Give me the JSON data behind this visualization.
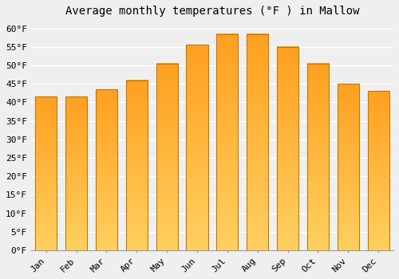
{
  "title": "Average monthly temperatures (°F ) in Mallow",
  "months": [
    "Jan",
    "Feb",
    "Mar",
    "Apr",
    "May",
    "Jun",
    "Jul",
    "Aug",
    "Sep",
    "Oct",
    "Nov",
    "Dec"
  ],
  "values": [
    41.5,
    41.5,
    43.5,
    46.0,
    50.5,
    55.5,
    58.5,
    58.5,
    55.0,
    50.5,
    45.0,
    43.0
  ],
  "bar_color_top": "#FFA500",
  "bar_color_bottom": "#FFD700",
  "bar_edge_color": "#C07800",
  "background_color": "#EFEFEF",
  "plot_bg_color": "#EFEFEF",
  "grid_color": "#FFFFFF",
  "ylim": [
    0,
    62
  ],
  "ytick_step": 5,
  "title_fontsize": 10,
  "tick_fontsize": 8,
  "font_family": "monospace"
}
